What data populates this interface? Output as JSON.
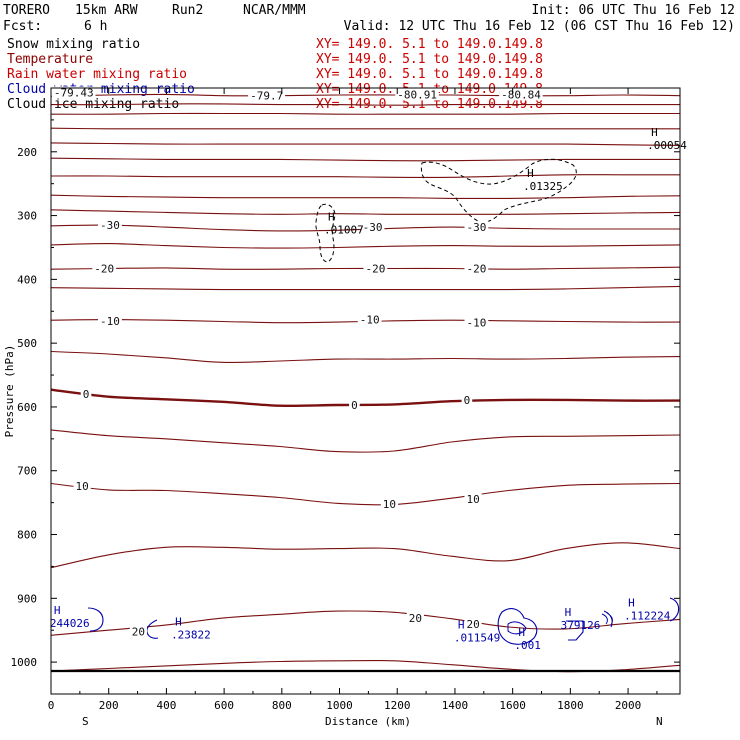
{
  "header": {
    "model": "TORERO",
    "resolution": "15km ARW",
    "run": "Run2",
    "org": "NCAR/MMM",
    "init": "Init: 06 UTC Thu 16 Feb 12",
    "fcst_label": "Fcst:",
    "fcst_value": "6 h",
    "valid": "Valid: 12 UTC Thu 16 Feb 12 (06 CST Thu 16 Feb 12)"
  },
  "fields": [
    {
      "name": "Snow mixing ratio",
      "color": "#000000",
      "xy": "XY= 149.0.  5.1 to 149.0.149.8"
    },
    {
      "name": "Temperature",
      "color": "#8b0000",
      "xy": "XY= 149.0.  5.1 to 149.0.149.8"
    },
    {
      "name": "Rain water mixing ratio",
      "color": "#cc0000",
      "xy": "XY= 149.0.  5.1 to 149.0.149.8"
    },
    {
      "name": "Cloud water mixing ratio",
      "color": "#0000aa",
      "xy": "XY= 149.0.  5.1 to 149.0.149.8"
    },
    {
      "name": "Cloud ice mixing ratio",
      "color": "#000000",
      "xy": "XY= 149.0.  5.1 to 149.0.149.8"
    }
  ],
  "chart_data": {
    "type": "contour-cross-section",
    "xlabel": "Distance (km)",
    "ylabel": "Pressure (hPa)",
    "xlim": [
      0,
      2180
    ],
    "ylim_hpa": [
      100,
      1050
    ],
    "x_ticks": [
      0,
      200,
      400,
      600,
      800,
      1000,
      1200,
      1400,
      1600,
      1800,
      2000
    ],
    "y_ticks": [
      200,
      300,
      400,
      500,
      600,
      700,
      800,
      900,
      1000
    ],
    "left_end": "S",
    "right_end": "N",
    "temperature_contour_interval_c": 5,
    "temperature_labels": [
      {
        "text": "-79.43",
        "x": 10,
        "p": 107
      },
      {
        "text": "-79.7",
        "x": 690,
        "p": 112
      },
      {
        "text": "-80.91",
        "x": 1200,
        "p": 110
      },
      {
        "text": "-80.84",
        "x": 1560,
        "p": 110
      },
      {
        "text": "-30",
        "x": 170,
        "p": 315
      },
      {
        "text": "-30",
        "x": 1080,
        "p": 318
      },
      {
        "text": "-30",
        "x": 1440,
        "p": 318
      },
      {
        "text": "-20",
        "x": 150,
        "p": 383
      },
      {
        "text": "-20",
        "x": 1090,
        "p": 383
      },
      {
        "text": "-20",
        "x": 1440,
        "p": 383
      },
      {
        "text": "-10",
        "x": 170,
        "p": 465
      },
      {
        "text": "-10",
        "x": 1070,
        "p": 463
      },
      {
        "text": "-10",
        "x": 1440,
        "p": 468
      },
      {
        "text": "0",
        "x": 110,
        "p": 580
      },
      {
        "text": "0",
        "x": 1040,
        "p": 597
      },
      {
        "text": "0",
        "x": 1430,
        "p": 589
      },
      {
        "text": "10",
        "x": 85,
        "p": 724
      },
      {
        "text": "10",
        "x": 1150,
        "p": 752
      },
      {
        "text": "10",
        "x": 1440,
        "p": 744
      },
      {
        "text": "20",
        "x": 280,
        "p": 952
      },
      {
        "text": "20",
        "x": 1240,
        "p": 931
      },
      {
        "text": "20",
        "x": 1440,
        "p": 940
      }
    ],
    "maxima_labels": [
      {
        "marker": "H",
        "value": ".00054",
        "x": 2080,
        "p": 188,
        "field": "cloud_ice"
      },
      {
        "marker": "H",
        "value": ".01325",
        "x": 1650,
        "p": 252,
        "field": "cloud_ice"
      },
      {
        "marker": "H",
        "value": ".01007",
        "x": 960,
        "p": 320,
        "field": "cloud_ice"
      },
      {
        "marker": "H",
        "value": "244026",
        "x": 10,
        "p": 937,
        "field": "cloud_water"
      },
      {
        "marker": "H",
        "value": ".23822",
        "x": 430,
        "p": 955,
        "field": "cloud_water"
      },
      {
        "marker": "H",
        "value": ".011549",
        "x": 1410,
        "p": 960,
        "field": "cloud_water"
      },
      {
        "marker": "H",
        "value": ".001",
        "x": 1620,
        "p": 972,
        "field": "cloud_water"
      },
      {
        "marker": "H",
        "value": "379126",
        "x": 1780,
        "p": 940,
        "field": "cloud_water"
      },
      {
        "marker": "H",
        "value": ".112224",
        "x": 2000,
        "p": 925,
        "field": "cloud_water"
      }
    ],
    "temperature_isotherms": [
      {
        "p": [
          113,
          111,
          110,
          112,
          112,
          111,
          111,
          111,
          112,
          112,
          111,
          112
        ]
      },
      {
        "p": [
          126,
          126,
          125,
          125,
          126,
          126,
          127,
          126,
          126,
          126,
          126,
          126
        ]
      },
      {
        "p": [
          141,
          141,
          140,
          140,
          140,
          141,
          141,
          141,
          141,
          140,
          140,
          140
        ]
      },
      {
        "p": [
          163,
          164,
          164,
          164,
          164,
          164,
          164,
          164,
          164,
          164,
          164,
          164
        ]
      },
      {
        "p": [
          186,
          187,
          188,
          188,
          188,
          188,
          188,
          188,
          188,
          188,
          189,
          190
        ]
      },
      {
        "p": [
          210,
          211,
          212,
          212,
          212,
          213,
          214,
          214,
          213,
          212,
          212,
          212
        ]
      },
      {
        "p": [
          238,
          238,
          239,
          239,
          239,
          239,
          240,
          240,
          238,
          236,
          236,
          236
        ]
      },
      {
        "p": [
          268,
          270,
          271,
          272,
          272,
          272,
          272,
          273,
          273,
          272,
          270,
          269
        ]
      },
      {
        "p": [
          291,
          293,
          295,
          297,
          298,
          297,
          298,
          298,
          298,
          297,
          296,
          295
        ]
      },
      {
        "p": [
          316,
          315,
          318,
          322,
          324,
          323,
          320,
          318,
          320,
          321,
          321,
          321
        ]
      },
      {
        "p": [
          346,
          344,
          347,
          350,
          351,
          350,
          348,
          347,
          348,
          348,
          347,
          346
        ]
      },
      {
        "p": [
          384,
          383,
          382,
          384,
          384,
          383,
          383,
          383,
          384,
          383,
          382,
          381
        ]
      },
      {
        "p": [
          413,
          414,
          415,
          416,
          416,
          416,
          416,
          416,
          416,
          415,
          413,
          411
        ]
      },
      {
        "p": [
          464,
          463,
          464,
          466,
          468,
          467,
          465,
          464,
          465,
          466,
          467,
          467
        ]
      },
      {
        "p": [
          513,
          517,
          523,
          530,
          528,
          525,
          525,
          524,
          525,
          524,
          522,
          521
        ]
      },
      {
        "p": [
          573,
          584,
          588,
          592,
          598,
          597,
          596,
          591,
          589,
          589,
          590,
          590
        ]
      },
      {
        "p": [
          636,
          645,
          650,
          656,
          662,
          670,
          669,
          655,
          647,
          646,
          645,
          644
        ]
      },
      {
        "p": [
          720,
          730,
          731,
          736,
          742,
          751,
          753,
          743,
          731,
          723,
          721,
          720
        ]
      },
      {
        "p": [
          852,
          832,
          820,
          820,
          823,
          822,
          822,
          834,
          841,
          822,
          813,
          822
        ]
      },
      {
        "p": [
          958,
          950,
          942,
          931,
          925,
          920,
          922,
          932,
          945,
          948,
          940,
          933
        ]
      },
      {
        "p": [
          1014,
          1010,
          1006,
          1002,
          999,
          998,
          998,
          1004,
          1011,
          1015,
          1012,
          1005
        ]
      }
    ],
    "zero_isotherm_index": 15,
    "surface_p": 1014
  }
}
